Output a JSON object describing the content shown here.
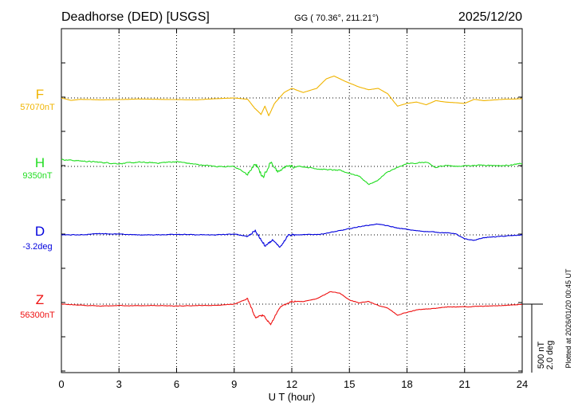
{
  "chart_data": {
    "type": "line",
    "title": "Deadhorse (DED)  [USGS]",
    "coordinates": "GG ( 70.36°, 211.21°)",
    "date": "2025/12/20",
    "xlabel": "U T (hour)",
    "xlim": [
      0,
      24
    ],
    "x_ticks": [
      "0",
      "3",
      "6",
      "9",
      "12",
      "15",
      "18",
      "21",
      "24"
    ],
    "grid": "dotted",
    "scale_label": "500 nT",
    "scale_label_deg": "2.0 deg",
    "plotted_note": "Plotted at 2026/01/20 00:45 UT",
    "series": [
      {
        "name": "F",
        "baseline": "57070nT",
        "color": "#f0b400",
        "jitter": 0.5,
        "points": [
          [
            0,
            0
          ],
          [
            0.5,
            -18
          ],
          [
            1,
            -10
          ],
          [
            2,
            -14
          ],
          [
            3,
            -12
          ],
          [
            4,
            -8
          ],
          [
            5,
            -10
          ],
          [
            6,
            -12
          ],
          [
            7,
            -14
          ],
          [
            8,
            -6
          ],
          [
            9,
            0
          ],
          [
            9.7,
            -10
          ],
          [
            10.1,
            -80
          ],
          [
            10.4,
            -120
          ],
          [
            10.6,
            -60
          ],
          [
            10.8,
            -130
          ],
          [
            11.1,
            -40
          ],
          [
            11.6,
            40
          ],
          [
            12,
            70
          ],
          [
            12.6,
            40
          ],
          [
            13.3,
            70
          ],
          [
            13.8,
            140
          ],
          [
            14.2,
            160
          ],
          [
            14.8,
            120
          ],
          [
            15.5,
            80
          ],
          [
            16,
            60
          ],
          [
            16.5,
            70
          ],
          [
            17,
            30
          ],
          [
            17.5,
            -60
          ],
          [
            18,
            -40
          ],
          [
            18.5,
            -30
          ],
          [
            19,
            -50
          ],
          [
            19.5,
            -20
          ],
          [
            20,
            -30
          ],
          [
            21,
            -40
          ],
          [
            21.5,
            -10
          ],
          [
            22,
            -20
          ],
          [
            23,
            -10
          ],
          [
            24,
            -6
          ]
        ]
      },
      {
        "name": "H",
        "baseline": "9350nT",
        "color": "#22dd22",
        "jitter": 5,
        "points": [
          [
            0,
            50
          ],
          [
            1,
            40
          ],
          [
            2,
            30
          ],
          [
            3,
            20
          ],
          [
            4,
            30
          ],
          [
            5,
            25
          ],
          [
            6,
            35
          ],
          [
            7,
            15
          ],
          [
            8,
            0
          ],
          [
            9,
            0
          ],
          [
            9.7,
            -60
          ],
          [
            10.1,
            20
          ],
          [
            10.5,
            -80
          ],
          [
            10.9,
            30
          ],
          [
            11.3,
            -40
          ],
          [
            11.7,
            0
          ],
          [
            12.5,
            0
          ],
          [
            13.5,
            -20
          ],
          [
            14.5,
            -30
          ],
          [
            15.5,
            -70
          ],
          [
            16,
            -130
          ],
          [
            16.4,
            -110
          ],
          [
            17,
            -40
          ],
          [
            17.5,
            -10
          ],
          [
            18,
            20
          ],
          [
            19,
            30
          ],
          [
            19.5,
            -10
          ],
          [
            20,
            10
          ],
          [
            20.5,
            0
          ],
          [
            21,
            5
          ],
          [
            22,
            10
          ],
          [
            23,
            5
          ],
          [
            24,
            20
          ]
        ]
      },
      {
        "name": "D",
        "baseline": "-3.2deg",
        "color": "#0000dd",
        "jitter": 3,
        "points": [
          [
            0,
            0
          ],
          [
            1,
            0
          ],
          [
            2,
            10
          ],
          [
            3,
            5
          ],
          [
            4,
            0
          ],
          [
            5,
            0
          ],
          [
            6,
            5
          ],
          [
            7,
            0
          ],
          [
            8,
            0
          ],
          [
            9,
            5
          ],
          [
            9.7,
            -10
          ],
          [
            10.1,
            30
          ],
          [
            10.6,
            -80
          ],
          [
            11,
            -40
          ],
          [
            11.4,
            -90
          ],
          [
            11.8,
            0
          ],
          [
            12.5,
            0
          ],
          [
            13.5,
            5
          ],
          [
            14.5,
            30
          ],
          [
            15.5,
            60
          ],
          [
            16.5,
            80
          ],
          [
            17.5,
            50
          ],
          [
            18.5,
            30
          ],
          [
            19.5,
            20
          ],
          [
            20.5,
            10
          ],
          [
            21,
            -30
          ],
          [
            21.5,
            -40
          ],
          [
            22,
            -20
          ],
          [
            23,
            -10
          ],
          [
            24,
            0
          ]
        ]
      },
      {
        "name": "Z",
        "baseline": "56300nT",
        "color": "#ee1111",
        "jitter": 2.5,
        "points": [
          [
            0,
            0
          ],
          [
            1,
            -8
          ],
          [
            2,
            -15
          ],
          [
            3,
            -10
          ],
          [
            4,
            -12
          ],
          [
            5,
            -10
          ],
          [
            6,
            -15
          ],
          [
            7,
            -10
          ],
          [
            8,
            -10
          ],
          [
            9,
            0
          ],
          [
            9.7,
            40
          ],
          [
            10.1,
            -100
          ],
          [
            10.5,
            -80
          ],
          [
            10.9,
            -150
          ],
          [
            11.4,
            -20
          ],
          [
            12,
            20
          ],
          [
            12.6,
            20
          ],
          [
            13.3,
            40
          ],
          [
            14,
            90
          ],
          [
            14.5,
            80
          ],
          [
            15,
            30
          ],
          [
            15.5,
            10
          ],
          [
            16,
            20
          ],
          [
            16.5,
            -10
          ],
          [
            17,
            -30
          ],
          [
            17.5,
            -80
          ],
          [
            18,
            -60
          ],
          [
            18.6,
            -40
          ],
          [
            19.5,
            -30
          ],
          [
            20,
            -20
          ],
          [
            21,
            -20
          ],
          [
            22,
            -15
          ],
          [
            23,
            -10
          ],
          [
            24,
            0
          ]
        ]
      }
    ]
  }
}
